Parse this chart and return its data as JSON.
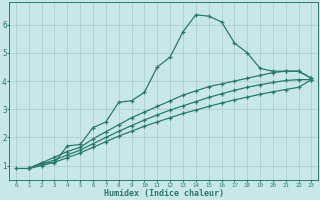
{
  "xlabel": "Humidex (Indice chaleur)",
  "xlim": [
    -0.5,
    23.5
  ],
  "ylim": [
    0.5,
    6.8
  ],
  "yticks": [
    1,
    2,
    3,
    4,
    5,
    6
  ],
  "xticks": [
    0,
    1,
    2,
    3,
    4,
    5,
    6,
    7,
    8,
    9,
    10,
    11,
    12,
    13,
    14,
    15,
    16,
    17,
    18,
    19,
    20,
    21,
    22,
    23
  ],
  "bg_color": "#c8e8e8",
  "grid_color": "#aed0d0",
  "line_color": "#2a7a6a",
  "line1_x": [
    0,
    1,
    2,
    3,
    4,
    5,
    6,
    7,
    8,
    9,
    10,
    11,
    12,
    13,
    14,
    15,
    16,
    17,
    18,
    19,
    20,
    21,
    22,
    23
  ],
  "line1_y": [
    0.9,
    0.9,
    1.1,
    1.1,
    1.7,
    1.75,
    2.35,
    2.55,
    3.25,
    3.3,
    3.6,
    4.5,
    4.85,
    5.75,
    6.35,
    6.3,
    6.1,
    5.35,
    5.0,
    4.45,
    4.35,
    4.35,
    4.35,
    4.1
  ],
  "line2_x": [
    1,
    2,
    3,
    4,
    5,
    6,
    7,
    8,
    9,
    10,
    11,
    12,
    13,
    14,
    15,
    16,
    17,
    18,
    19,
    20,
    21,
    22,
    23
  ],
  "line2_y": [
    0.9,
    1.1,
    1.3,
    1.5,
    1.65,
    1.95,
    2.2,
    2.45,
    2.7,
    2.9,
    3.1,
    3.3,
    3.5,
    3.65,
    3.8,
    3.9,
    4.0,
    4.1,
    4.2,
    4.3,
    4.35,
    4.35,
    4.1
  ],
  "line3_x": [
    1,
    2,
    3,
    4,
    5,
    6,
    7,
    8,
    9,
    10,
    11,
    12,
    13,
    14,
    15,
    16,
    17,
    18,
    19,
    20,
    21,
    22,
    23
  ],
  "line3_y": [
    0.9,
    1.05,
    1.2,
    1.38,
    1.55,
    1.78,
    2.0,
    2.22,
    2.42,
    2.62,
    2.8,
    2.97,
    3.12,
    3.27,
    3.42,
    3.55,
    3.67,
    3.78,
    3.87,
    3.95,
    4.02,
    4.05,
    4.05
  ],
  "line4_x": [
    1,
    2,
    3,
    4,
    5,
    6,
    7,
    8,
    9,
    10,
    11,
    12,
    13,
    14,
    15,
    16,
    17,
    18,
    19,
    20,
    21,
    22,
    23
  ],
  "line4_y": [
    0.9,
    1.0,
    1.12,
    1.28,
    1.45,
    1.65,
    1.85,
    2.05,
    2.22,
    2.4,
    2.55,
    2.7,
    2.85,
    2.97,
    3.1,
    3.22,
    3.33,
    3.43,
    3.53,
    3.62,
    3.7,
    3.78,
    4.05
  ]
}
